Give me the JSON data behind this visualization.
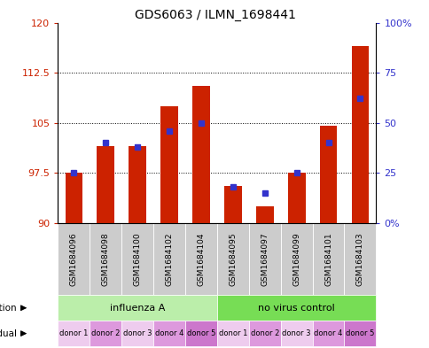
{
  "title": "GDS6063 / ILMN_1698441",
  "samples": [
    "GSM1684096",
    "GSM1684098",
    "GSM1684100",
    "GSM1684102",
    "GSM1684104",
    "GSM1684095",
    "GSM1684097",
    "GSM1684099",
    "GSM1684101",
    "GSM1684103"
  ],
  "red_values": [
    97.5,
    101.5,
    101.5,
    107.5,
    110.5,
    95.5,
    92.5,
    97.5,
    104.5,
    116.5
  ],
  "blue_values": [
    25,
    40,
    38,
    46,
    50,
    18,
    15,
    25,
    40,
    62
  ],
  "ylim_left": [
    90,
    120
  ],
  "ylim_right": [
    0,
    100
  ],
  "yticks_left": [
    90,
    97.5,
    105,
    112.5,
    120
  ],
  "yticks_right": [
    0,
    25,
    50,
    75,
    100
  ],
  "ytick_labels_left": [
    "90",
    "97.5",
    "105",
    "112.5",
    "120"
  ],
  "ytick_labels_right": [
    "0%",
    "25",
    "50",
    "75",
    "100%"
  ],
  "bar_bottom": 90,
  "bar_color": "#cc2200",
  "blue_color": "#3333cc",
  "infection_groups": [
    {
      "label": "influenza A",
      "start": 0,
      "end": 5,
      "color": "#bbeeaa"
    },
    {
      "label": "no virus control",
      "start": 5,
      "end": 10,
      "color": "#77dd55"
    }
  ],
  "individual_labels": [
    "donor 1",
    "donor 2",
    "donor 3",
    "donor 4",
    "donor 5",
    "donor 1",
    "donor 2",
    "donor 3",
    "donor 4",
    "donor 5"
  ],
  "ind_colors": [
    "#eeccee",
    "#dd99dd",
    "#eeccee",
    "#dd99dd",
    "#cc77cc",
    "#eeccee",
    "#dd99dd",
    "#eeccee",
    "#dd99dd",
    "#cc77cc"
  ],
  "sample_bg_color": "#cccccc",
  "bg_color": "#ffffff",
  "grid_color": "#000000",
  "left_tick_color": "#cc2200",
  "right_tick_color": "#3333cc",
  "bar_width": 0.55,
  "blue_marker_size": 4
}
